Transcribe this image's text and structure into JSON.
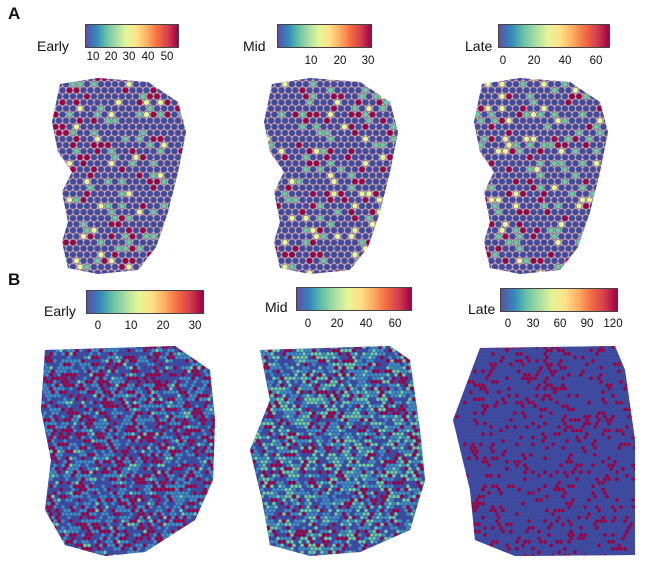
{
  "panels": [
    {
      "letter": "A",
      "maps": [
        {
          "title": "Early",
          "ticks": [
            "10",
            "20",
            "30",
            "40",
            "50"
          ]
        },
        {
          "title": "Mid",
          "ticks": [
            "10",
            "20",
            "30"
          ]
        },
        {
          "title": "Late",
          "ticks": [
            "0",
            "20",
            "40",
            "60"
          ]
        }
      ]
    },
    {
      "letter": "B",
      "maps": [
        {
          "title": "Early",
          "ticks": [
            "0",
            "10",
            "20",
            "30"
          ]
        },
        {
          "title": "Mid",
          "ticks": [
            "0",
            "20",
            "40",
            "60"
          ]
        },
        {
          "title": "Late",
          "ticks": [
            "0",
            "30",
            "60",
            "90",
            "120"
          ]
        }
      ]
    }
  ],
  "colors": {
    "low": "#3f4aa0",
    "mid_low": "#3d8cc0",
    "mid": "#6cc8a0",
    "mid_high": "#e8f598",
    "high": "#9e0142",
    "tissue": "#c85aa8"
  }
}
